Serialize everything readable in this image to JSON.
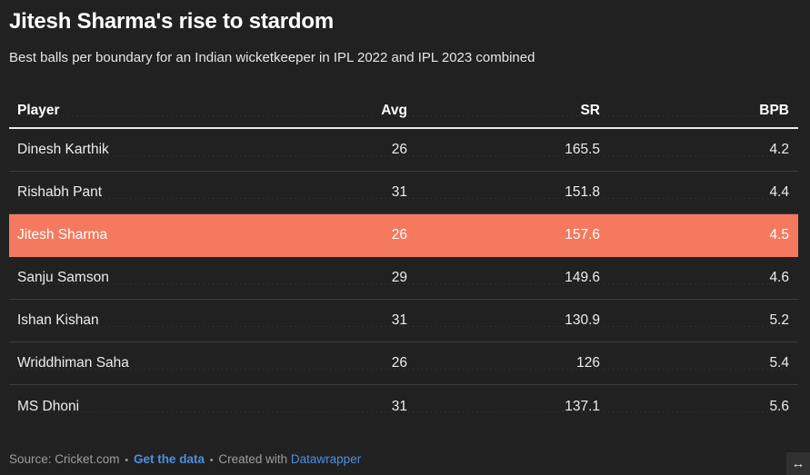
{
  "chart_data": {
    "type": "table",
    "title": "Jitesh Sharma's rise to stardom",
    "subtitle": "Best balls per boundary for an Indian wicketkeeper in IPL 2022 and IPL 2023 combined",
    "columns": [
      "Player",
      "Avg",
      "SR",
      "BPB"
    ],
    "rows": [
      {
        "player": "Dinesh Karthik",
        "avg": "26",
        "sr": "165.5",
        "bpb": "4.2",
        "highlighted": false
      },
      {
        "player": "Rishabh Pant",
        "avg": "31",
        "sr": "151.8",
        "bpb": "4.4",
        "highlighted": false
      },
      {
        "player": "Jitesh Sharma",
        "avg": "26",
        "sr": "157.6",
        "bpb": "4.5",
        "highlighted": true
      },
      {
        "player": "Sanju Samson",
        "avg": "29",
        "sr": "149.6",
        "bpb": "4.6",
        "highlighted": false
      },
      {
        "player": "Ishan Kishan",
        "avg": "31",
        "sr": "130.9",
        "bpb": "5.2",
        "highlighted": false
      },
      {
        "player": "Wriddhiman Saha",
        "avg": "26",
        "sr": "126",
        "bpb": "5.4",
        "highlighted": false
      },
      {
        "player": "MS Dhoni",
        "avg": "31",
        "sr": "137.1",
        "bpb": "5.6",
        "highlighted": false
      }
    ],
    "highlighted_row": "Jitesh Sharma",
    "layout": {
      "numeric_columns_alignment": "right",
      "header_divider": true,
      "row_dividers": true,
      "theme": "dark"
    }
  },
  "colors": {
    "background": "#212121",
    "highlight_row": "#f4795e",
    "link": "#4a90e2",
    "text": "#ededed",
    "muted_text": "#9d9d9d",
    "divider": "#3d3d3d",
    "header_underline": "#eaeaea"
  },
  "footer": {
    "source_text": "Source: Cricket.com",
    "dot": "•",
    "get_data_link": "Get the data",
    "created_with": "Created with",
    "datawrapper_link": "Datawrapper"
  },
  "icons": {
    "resize_arrow": "↔"
  }
}
